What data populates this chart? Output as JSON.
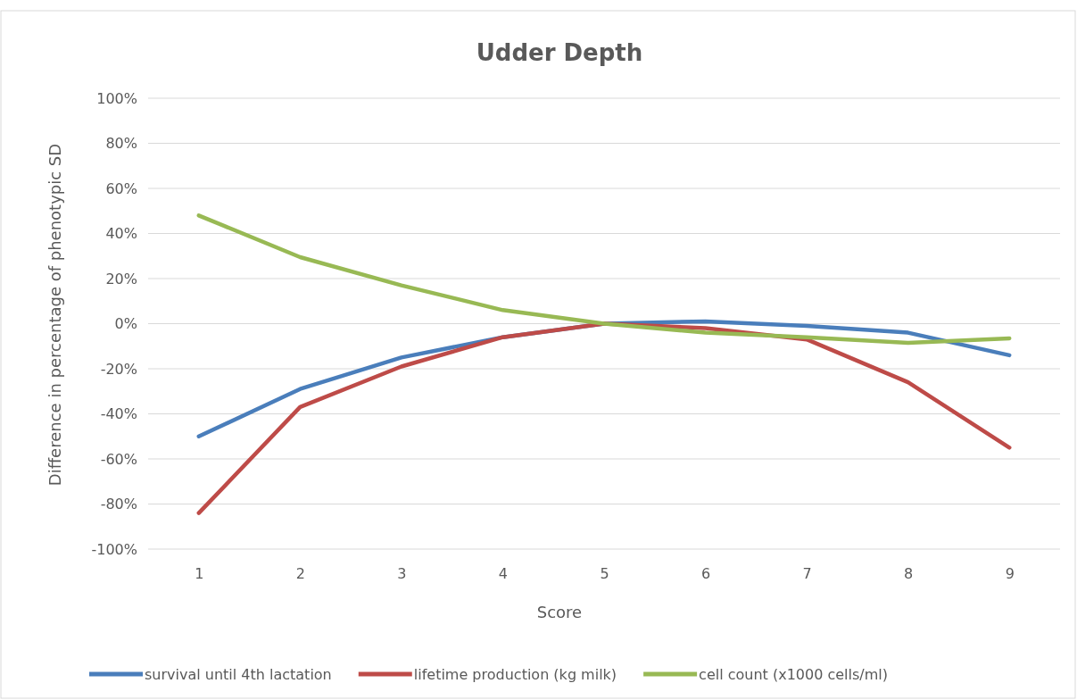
{
  "chart_data": {
    "type": "line",
    "title": "Udder Depth",
    "xlabel": "Score",
    "ylabel": "Difference in percentage of phenotypic SD",
    "categories": [
      "1",
      "2",
      "3",
      "4",
      "5",
      "6",
      "7",
      "8",
      "9"
    ],
    "series": [
      {
        "name": "survival until 4th lactation",
        "color": "#4a7ebb",
        "values": [
          -50,
          -29,
          -15,
          -6,
          0,
          1,
          -1,
          -4,
          -14
        ]
      },
      {
        "name": "lifetime production (kg milk)",
        "color": "#be4b48",
        "values": [
          -84,
          -37,
          -19,
          -6,
          0,
          -2,
          -7,
          -26,
          -55
        ]
      },
      {
        "name": "cell count (x1000 cells/ml)",
        "color": "#98b954",
        "values": [
          48,
          29.5,
          17,
          6,
          0,
          -4,
          -6,
          -8.5,
          -6.5
        ]
      }
    ],
    "ylim": [
      -100,
      100
    ],
    "yticks": [
      {
        "value": -100,
        "label": "-100%"
      },
      {
        "value": -80,
        "label": "-80%"
      },
      {
        "value": -60,
        "label": "-60%"
      },
      {
        "value": -40,
        "label": "-40%"
      },
      {
        "value": -20,
        "label": "-20%"
      },
      {
        "value": 0,
        "label": "0%"
      },
      {
        "value": 20,
        "label": "20%"
      },
      {
        "value": 40,
        "label": "40%"
      },
      {
        "value": 60,
        "label": "60%"
      },
      {
        "value": 80,
        "label": "80%"
      },
      {
        "value": 100,
        "label": "100%"
      }
    ],
    "grid": "y",
    "legend": "bottom",
    "marker": "none",
    "line_style": "solid"
  }
}
